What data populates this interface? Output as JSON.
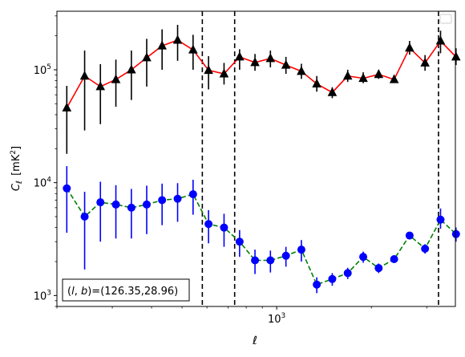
{
  "chart_data": {
    "type": "scatter",
    "xscale": "log",
    "yscale": "log",
    "xlim": [
      200,
      3700
    ],
    "ylim": [
      800,
      330000
    ],
    "xlabel": "ℓ",
    "ylabel_main": "C",
    "ylabel_sub": "ℓ",
    "ylabel_unit_open": "[mK",
    "ylabel_unit_sup": "2",
    "ylabel_unit_close": "]",
    "xticks": [
      {
        "value": 1000,
        "base": "10",
        "exp": "3"
      }
    ],
    "yticks": [
      {
        "value": 1000,
        "base": "10",
        "exp": "3"
      },
      {
        "value": 10000,
        "base": "10",
        "exp": "4"
      },
      {
        "value": 100000,
        "base": "10",
        "exp": "5"
      }
    ],
    "vlines": [
      580,
      735,
      3270
    ],
    "annotation": {
      "var_l": "l",
      "var_b": "b",
      "value": "(126.35,28.96)"
    },
    "legend": {
      "location": "upper right",
      "entries": []
    },
    "series": [
      {
        "marker": "triangle",
        "color": "#000000",
        "line_color": "#ff0000",
        "line_style": "solid",
        "x": [
          215,
          245,
          275,
          308,
          345,
          386,
          432,
          484,
          542,
          607,
          680,
          762,
          853,
          955,
          1070,
          1198,
          1341,
          1502,
          1682,
          1884,
          2110,
          2363,
          2646,
          2963,
          3319,
          3717
        ],
        "y": [
          46000,
          88000,
          71000,
          82000,
          100000,
          128000,
          163000,
          183000,
          150000,
          99000,
          92000,
          130000,
          116000,
          126000,
          110000,
          97000,
          75000,
          63000,
          88000,
          84000,
          91000,
          82000,
          156000,
          115000,
          180000,
          130000
        ],
        "err_low": [
          18000,
          29000,
          33000,
          47000,
          54000,
          71000,
          100000,
          120000,
          100000,
          67000,
          74000,
          100000,
          98000,
          105000,
          92000,
          83000,
          64000,
          56000,
          78000,
          76000,
          83000,
          77000,
          136000,
          98000,
          140000,
          110000
        ],
        "err_high": [
          72000,
          148000,
          112000,
          123000,
          148000,
          188000,
          228000,
          250000,
          204000,
          132000,
          115000,
          152000,
          138000,
          148000,
          130000,
          113000,
          88000,
          70000,
          100000,
          95000,
          100000,
          90000,
          180000,
          135000,
          222000,
          155000
        ]
      },
      {
        "marker": "circle",
        "color": "#0000ff",
        "line_color": "#008000",
        "line_style": "dashed",
        "x": [
          215,
          245,
          275,
          308,
          345,
          386,
          432,
          484,
          542,
          607,
          680,
          762,
          853,
          955,
          1070,
          1198,
          1341,
          1502,
          1682,
          1884,
          2110,
          2363,
          2646,
          2963,
          3319,
          3717
        ],
        "y": [
          8900,
          5000,
          6700,
          6400,
          6000,
          6400,
          7000,
          7200,
          7900,
          4300,
          4000,
          3000,
          2050,
          2050,
          2250,
          2550,
          1250,
          1400,
          1580,
          2200,
          1750,
          2100,
          3400,
          2600,
          4700,
          3500
        ],
        "err_low": [
          3600,
          1700,
          3000,
          3200,
          3200,
          3500,
          4200,
          4500,
          5200,
          2900,
          2700,
          2200,
          1550,
          1600,
          1800,
          2000,
          1050,
          1220,
          1400,
          1950,
          1580,
          1950,
          3150,
          2350,
          3900,
          3000
        ],
        "err_high": [
          14000,
          8300,
          10200,
          9500,
          8800,
          9400,
          9800,
          9900,
          10600,
          5700,
          5300,
          3800,
          2550,
          2500,
          2700,
          3100,
          1450,
          1580,
          1760,
          2450,
          1920,
          2250,
          3650,
          2850,
          5900,
          4000
        ]
      }
    ]
  }
}
